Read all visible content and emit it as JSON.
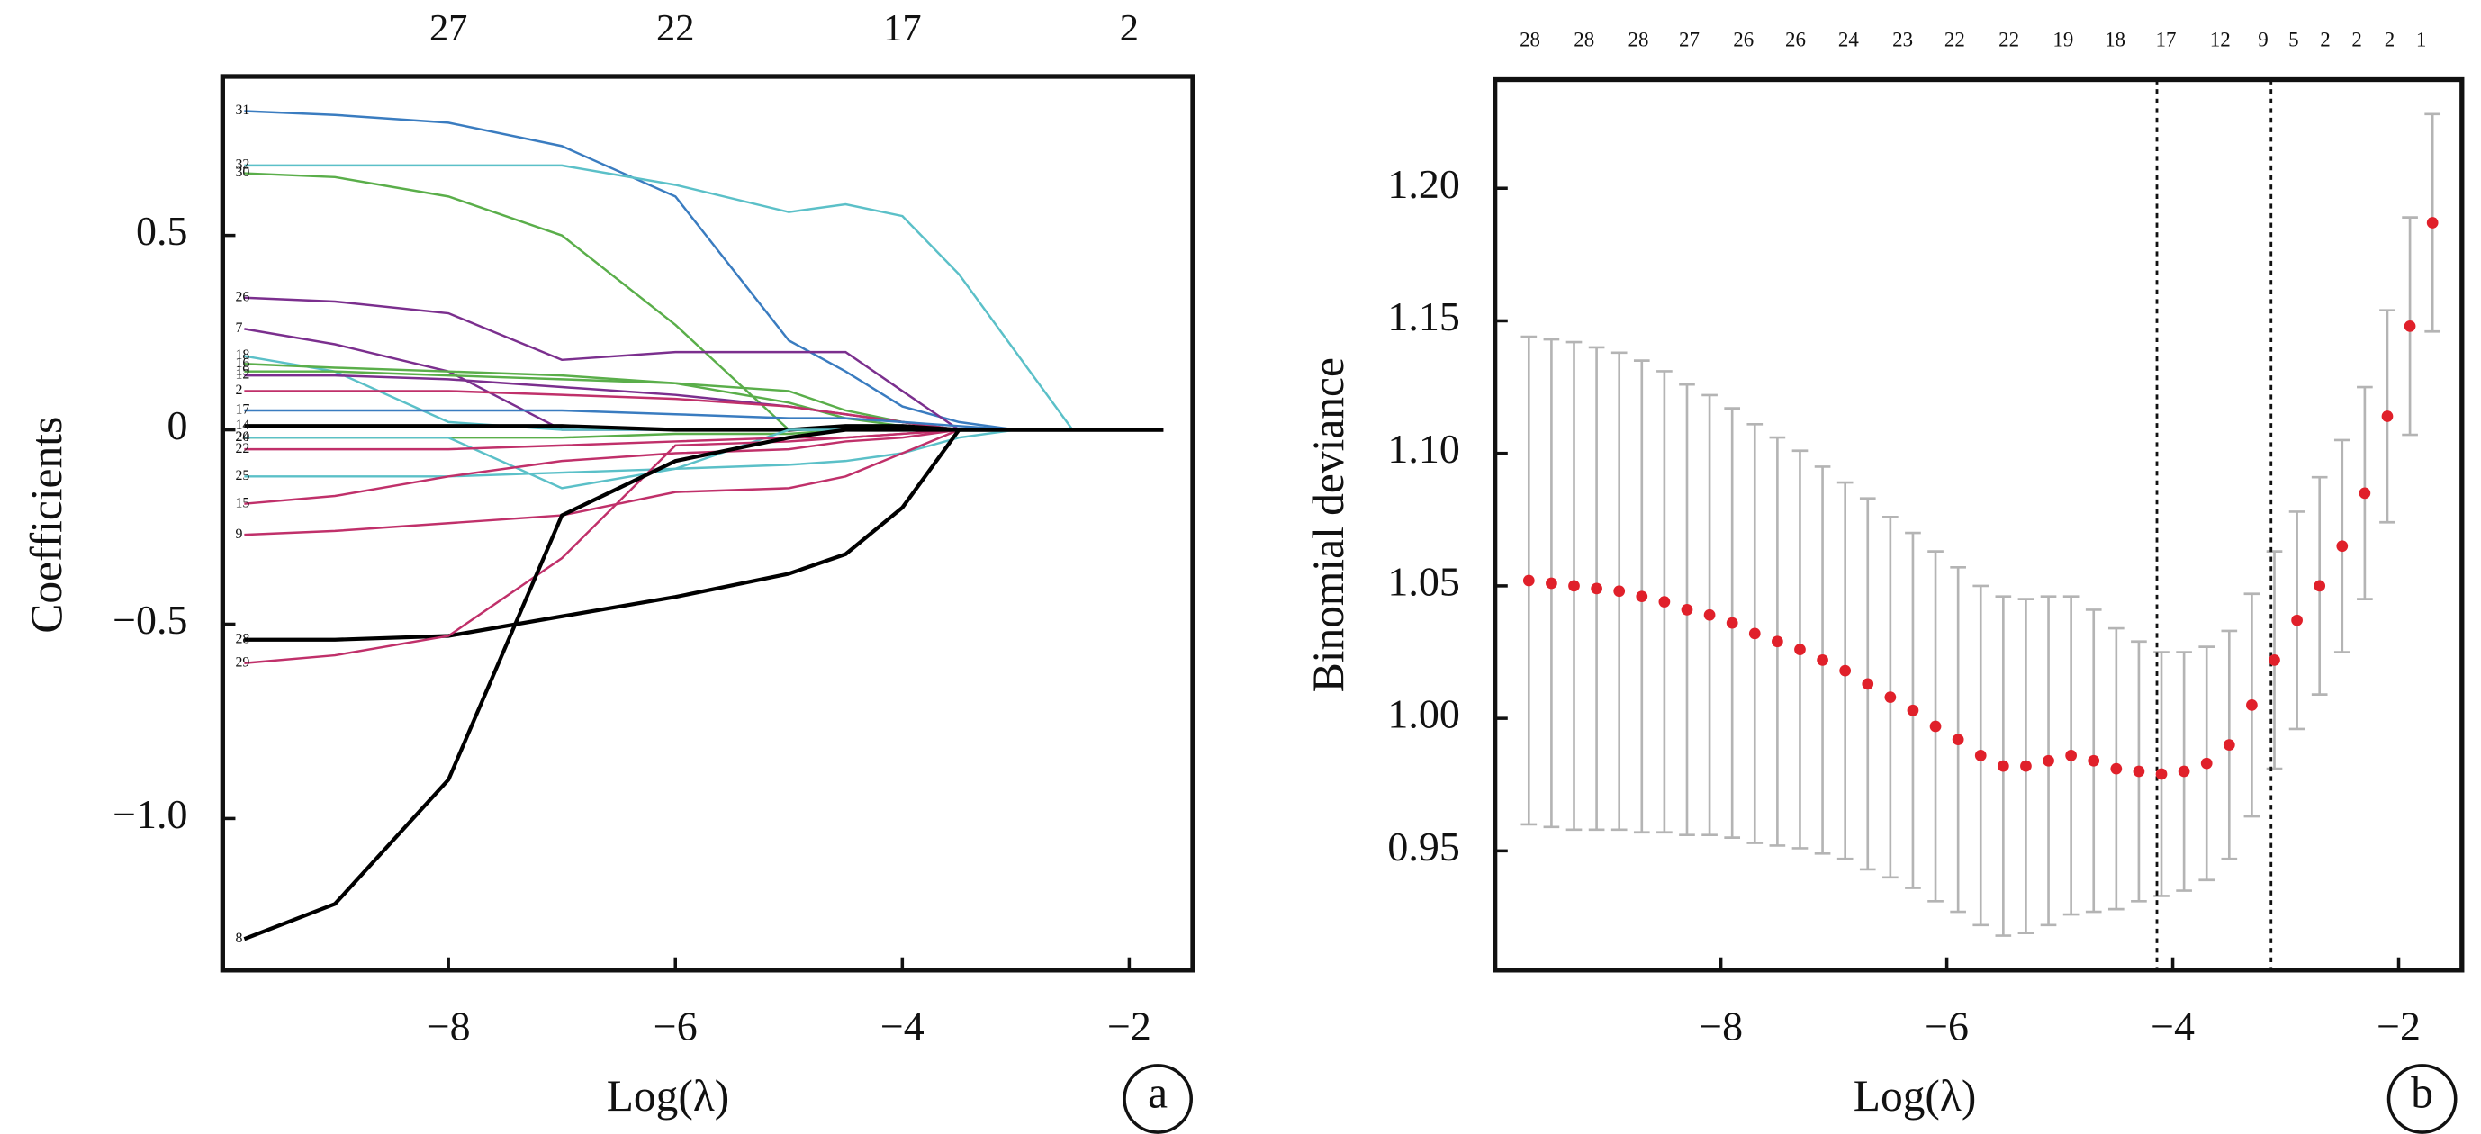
{
  "chart_data": [
    {
      "type": "line",
      "panel_label": "a",
      "xlabel": "Log(λ)",
      "ylabel": "Coefficients",
      "xlim": [
        -9.99,
        -1.44
      ],
      "ylim": [
        -1.39,
        0.909
      ],
      "xticks": [
        {
          "value": -8,
          "label": "−8"
        },
        {
          "value": -6,
          "label": "−6"
        },
        {
          "value": -4,
          "label": "−4"
        },
        {
          "value": -2,
          "label": "−2"
        }
      ],
      "yticks": [
        {
          "value": 0.5,
          "label": "0.5"
        },
        0,
        {
          "value": -0.5,
          "label": "−0.5"
        },
        {
          "value": -1.0,
          "label": "−1.0"
        }
      ],
      "x2ticks": [
        {
          "value": -8,
          "label": "27"
        },
        {
          "value": -6,
          "label": "22"
        },
        {
          "value": -4,
          "label": "17"
        },
        {
          "value": -2,
          "label": "2"
        }
      ],
      "x": [
        -9.8,
        -9,
        -8,
        -7,
        -6,
        -5,
        -4.5,
        -4,
        -3.5,
        -3,
        -2.5,
        -2,
        -1.7
      ],
      "series": [
        {
          "name": "31",
          "color": "#3a7cc0",
          "values": [
            0.82,
            0.81,
            0.79,
            0.73,
            0.6,
            0.23,
            0.15,
            0.06,
            0.02,
            0,
            0,
            0,
            0
          ]
        },
        {
          "name": "32",
          "color": "#5bc0c8",
          "values": [
            0.68,
            0.68,
            0.68,
            0.68,
            0.63,
            0.56,
            0.58,
            0.55,
            0.4,
            0.2,
            0,
            0,
            0
          ]
        },
        {
          "name": "30",
          "color": "#5aae4a",
          "values": [
            0.66,
            0.65,
            0.6,
            0.5,
            0.27,
            0,
            0,
            0,
            0,
            0,
            0,
            0,
            0
          ]
        },
        {
          "name": "26",
          "color": "#7b2f8e",
          "values": [
            0.34,
            0.33,
            0.3,
            0.18,
            0.2,
            0.2,
            0.2,
            0.1,
            0,
            0,
            0,
            0,
            0
          ]
        },
        {
          "name": "7",
          "color": "#7b2f8e",
          "values": [
            0.26,
            0.22,
            0.15,
            0,
            0,
            0,
            0,
            0,
            0,
            0,
            0,
            0,
            0
          ]
        },
        {
          "name": "18",
          "color": "#5bc0c8",
          "values": [
            0.19,
            0.15,
            0.02,
            0,
            0,
            0,
            0,
            0,
            0,
            0,
            0,
            0,
            0
          ]
        },
        {
          "name": "16",
          "color": "#5aae4a",
          "values": [
            0.17,
            0.16,
            0.15,
            0.14,
            0.12,
            0.07,
            0.03,
            0.01,
            0,
            0,
            0,
            0,
            0
          ]
        },
        {
          "name": "19",
          "color": "#5aae4a",
          "values": [
            0.15,
            0.15,
            0.14,
            0.13,
            0.12,
            0.1,
            0.05,
            0.02,
            0,
            0,
            0,
            0,
            0
          ]
        },
        {
          "name": "12",
          "color": "#7b2f8e",
          "values": [
            0.14,
            0.14,
            0.13,
            0.11,
            0.09,
            0.06,
            0.04,
            0.02,
            0,
            0,
            0,
            0,
            0
          ]
        },
        {
          "name": "2",
          "color": "#c0306a",
          "values": [
            0.1,
            0.1,
            0.1,
            0.09,
            0.08,
            0.06,
            0.04,
            0.02,
            0,
            0,
            0,
            0,
            0
          ]
        },
        {
          "name": "17",
          "color": "#3a7cc0",
          "values": [
            0.05,
            0.05,
            0.05,
            0.05,
            0.04,
            0.03,
            0.03,
            0.02,
            0.01,
            0,
            0,
            0,
            0
          ]
        },
        {
          "name": "14",
          "color": "#000000",
          "values": [
            0.01,
            0.01,
            0.01,
            0.01,
            0,
            0,
            0.01,
            0.01,
            0,
            0,
            0,
            0,
            0
          ]
        },
        {
          "name": "20",
          "color": "#5aae4a",
          "values": [
            -0.02,
            -0.02,
            -0.02,
            -0.02,
            -0.01,
            -0.01,
            0,
            0,
            0,
            0,
            0,
            0,
            0
          ]
        },
        {
          "name": "24",
          "color": "#5bc0c8",
          "values": [
            -0.02,
            -0.02,
            -0.02,
            -0.15,
            -0.1,
            0,
            0,
            0,
            0,
            0,
            0,
            0,
            0
          ]
        },
        {
          "name": "22",
          "color": "#c0306a",
          "values": [
            -0.05,
            -0.05,
            -0.05,
            -0.04,
            -0.03,
            -0.02,
            -0.02,
            -0.01,
            0,
            0,
            0,
            0,
            0
          ]
        },
        {
          "name": "25",
          "color": "#5bc0c8",
          "values": [
            -0.12,
            -0.12,
            -0.12,
            -0.11,
            -0.1,
            -0.09,
            -0.08,
            -0.06,
            -0.02,
            0,
            0,
            0,
            0
          ]
        },
        {
          "name": "15",
          "color": "#c0306a",
          "values": [
            -0.19,
            -0.17,
            -0.12,
            -0.08,
            -0.06,
            -0.05,
            -0.03,
            -0.02,
            0,
            0,
            0,
            0,
            0
          ]
        },
        {
          "name": "9",
          "color": "#c0306a",
          "values": [
            -0.27,
            -0.26,
            -0.24,
            -0.22,
            -0.16,
            -0.15,
            -0.12,
            -0.06,
            0,
            0,
            0,
            0,
            0
          ]
        },
        {
          "name": "28",
          "color": "#000000",
          "values": [
            -0.54,
            -0.54,
            -0.53,
            -0.48,
            -0.43,
            -0.37,
            -0.32,
            -0.2,
            0,
            0,
            0,
            0,
            0
          ]
        },
        {
          "name": "29",
          "color": "#c0306a",
          "values": [
            -0.6,
            -0.58,
            -0.53,
            -0.33,
            -0.04,
            -0.03,
            -0.02,
            -0.01,
            0,
            0,
            0,
            0,
            0
          ]
        },
        {
          "name": "8",
          "color": "#000000",
          "values": [
            -1.31,
            -1.22,
            -0.9,
            -0.22,
            -0.08,
            -0.02,
            0,
            0,
            0,
            0,
            0,
            0,
            0
          ]
        }
      ]
    },
    {
      "type": "errorbar",
      "panel_label": "b",
      "xlabel": "Log(λ)",
      "ylabel": "Binomial deviance",
      "xlim": [
        -10.0,
        -1.44
      ],
      "ylim": [
        0.905,
        1.241
      ],
      "xticks": [
        {
          "value": -8,
          "label": "−8"
        },
        {
          "value": -6,
          "label": "−6"
        },
        {
          "value": -4,
          "label": "−4"
        },
        {
          "value": -2,
          "label": "−2"
        }
      ],
      "yticks": [
        0.95,
        {
          "value": 1.0,
          "label": "1.00"
        },
        1.05,
        {
          "value": 1.1,
          "label": "1.10"
        },
        1.15,
        {
          "value": 1.2,
          "label": "1.20"
        }
      ],
      "x2ticks": [
        {
          "value": -9.69,
          "label": "28"
        },
        {
          "value": -9.21,
          "label": "28"
        },
        {
          "value": -8.73,
          "label": "28"
        },
        {
          "value": -8.28,
          "label": "27"
        },
        {
          "value": -7.8,
          "label": "26"
        },
        {
          "value": -7.34,
          "label": "26"
        },
        {
          "value": -6.87,
          "label": "24"
        },
        {
          "value": -6.39,
          "label": "23"
        },
        {
          "value": -5.93,
          "label": "22"
        },
        {
          "value": -5.45,
          "label": "22"
        },
        {
          "value": -4.97,
          "label": "19"
        },
        {
          "value": -4.51,
          "label": "18"
        },
        {
          "value": -4.06,
          "label": "17"
        },
        {
          "value": -3.58,
          "label": "12"
        },
        {
          "value": -3.2,
          "label": "9"
        },
        {
          "value": -2.93,
          "label": "5"
        },
        {
          "value": -2.65,
          "label": "2"
        },
        {
          "value": -2.37,
          "label": "2"
        },
        {
          "value": -2.08,
          "label": "2"
        },
        {
          "value": -1.8,
          "label": "1"
        }
      ],
      "vlines": [
        -4.14,
        -3.13
      ],
      "color": "#e0202a",
      "error_color": "#b4b4b4",
      "x": [
        -9.7,
        -9.5,
        -9.3,
        -9.1,
        -8.9,
        -8.7,
        -8.5,
        -8.3,
        -8.1,
        -7.9,
        -7.7,
        -7.5,
        -7.3,
        -7.1,
        -6.9,
        -6.7,
        -6.5,
        -6.3,
        -6.1,
        -5.9,
        -5.7,
        -5.5,
        -5.3,
        -5.1,
        -4.9,
        -4.7,
        -4.5,
        -4.3,
        -4.1,
        -3.9,
        -3.7,
        -3.5,
        -3.3,
        -3.1,
        -2.9,
        -2.7,
        -2.5,
        -2.3,
        -2.1,
        -1.9,
        -1.7
      ],
      "values": [
        1.052,
        1.051,
        1.05,
        1.049,
        1.048,
        1.046,
        1.044,
        1.041,
        1.039,
        1.036,
        1.032,
        1.029,
        1.026,
        1.022,
        1.018,
        1.013,
        1.008,
        1.003,
        0.997,
        0.992,
        0.986,
        0.982,
        0.982,
        0.984,
        0.986,
        0.984,
        0.981,
        0.98,
        0.979,
        0.98,
        0.983,
        0.99,
        1.005,
        1.022,
        1.037,
        1.05,
        1.065,
        1.085,
        1.114,
        1.148,
        1.187
      ],
      "errors": [
        0.092,
        0.092,
        0.092,
        0.091,
        0.09,
        0.089,
        0.087,
        0.085,
        0.083,
        0.081,
        0.079,
        0.077,
        0.075,
        0.073,
        0.071,
        0.07,
        0.068,
        0.067,
        0.066,
        0.065,
        0.064,
        0.064,
        0.063,
        0.062,
        0.06,
        0.057,
        0.053,
        0.049,
        0.046,
        0.045,
        0.044,
        0.043,
        0.042,
        0.041,
        0.041,
        0.041,
        0.04,
        0.04,
        0.04,
        0.041,
        0.041
      ]
    }
  ]
}
